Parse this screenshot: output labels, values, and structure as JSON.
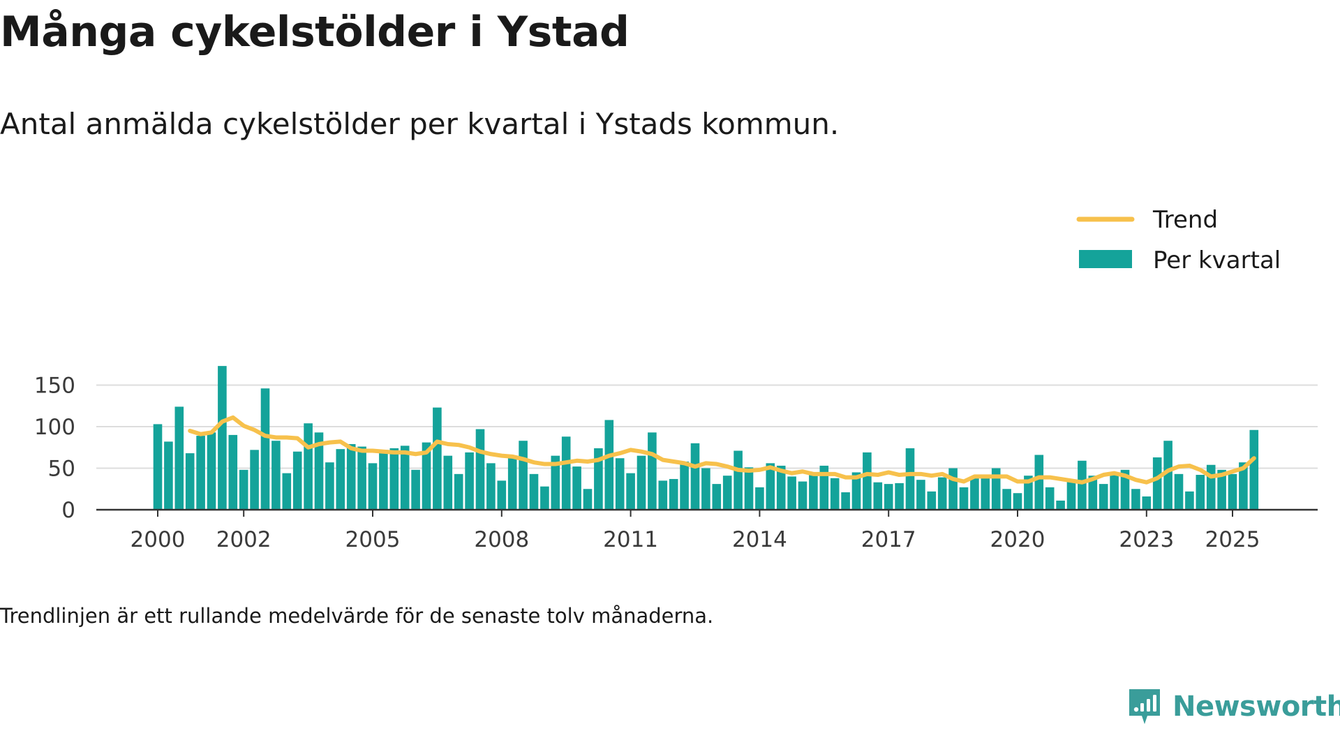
{
  "header": {
    "title": "Många cykelstölder i Ystad",
    "subtitle": "Antal anmälda cykelstölder per kvartal i Ystads kommun."
  },
  "footnote": "Trendlinjen är ett rullande medelvärde för de senaste tolv månaderna.",
  "brand": {
    "name": "Newsworthy",
    "color": "#3a9d9a"
  },
  "colors": {
    "bars": "#14a39a",
    "trend": "#f7c14c",
    "grid": "#dddddd",
    "axis": "#333333"
  },
  "chart_data": {
    "type": "bar",
    "title": "Många cykelstölder i Ystad",
    "xlabel": "",
    "ylabel": "",
    "ylim": [
      0,
      175
    ],
    "yticks": [
      0,
      50,
      100,
      150
    ],
    "grid": true,
    "legend_position": "top-right",
    "start": {
      "year": 2000,
      "quarter": 1
    },
    "xtick_labels": [
      "2000",
      "2002",
      "2005",
      "2008",
      "2011",
      "2014",
      "2017",
      "2020",
      "2023",
      "2025"
    ],
    "series": [
      {
        "name": "Per kvartal",
        "type": "bar",
        "values": [
          103,
          82,
          124,
          68,
          89,
          93,
          173,
          90,
          48,
          72,
          146,
          83,
          44,
          70,
          104,
          93,
          57,
          73,
          79,
          76,
          56,
          72,
          74,
          77,
          48,
          81,
          123,
          65,
          43,
          69,
          97,
          56,
          35,
          65,
          83,
          43,
          28,
          65,
          88,
          52,
          25,
          74,
          108,
          62,
          44,
          65,
          93,
          35,
          37,
          58,
          80,
          50,
          31,
          41,
          71,
          51,
          27,
          56,
          53,
          40,
          34,
          42,
          53,
          38,
          21,
          45,
          69,
          33,
          31,
          32,
          74,
          36,
          22,
          39,
          50,
          27,
          40,
          38,
          50,
          25,
          20,
          41,
          66,
          27,
          11,
          34,
          59,
          41,
          31,
          42,
          48,
          25,
          16,
          63,
          83,
          43,
          22,
          42,
          54,
          48,
          43,
          57,
          96
        ]
      },
      {
        "name": "Trend",
        "type": "line",
        "values": [
          null,
          null,
          null,
          95,
          91,
          93,
          106,
          111,
          101,
          96,
          89,
          87,
          87,
          86,
          75,
          79,
          81,
          82,
          74,
          71,
          71,
          70,
          69,
          69,
          67,
          69,
          82,
          79,
          78,
          75,
          70,
          67,
          65,
          64,
          61,
          57,
          55,
          55,
          57,
          59,
          58,
          60,
          65,
          68,
          72,
          70,
          67,
          60,
          58,
          56,
          52,
          56,
          55,
          52,
          48,
          47,
          48,
          51,
          47,
          44,
          46,
          43,
          43,
          43,
          39,
          39,
          43,
          42,
          45,
          42,
          43,
          43,
          41,
          43,
          37,
          34,
          40,
          40,
          40,
          40,
          34,
          34,
          39,
          39,
          37,
          35,
          33,
          37,
          42,
          44,
          41,
          36,
          33,
          38,
          47,
          52,
          53,
          48,
          40,
          42,
          46,
          50,
          62
        ]
      }
    ]
  }
}
